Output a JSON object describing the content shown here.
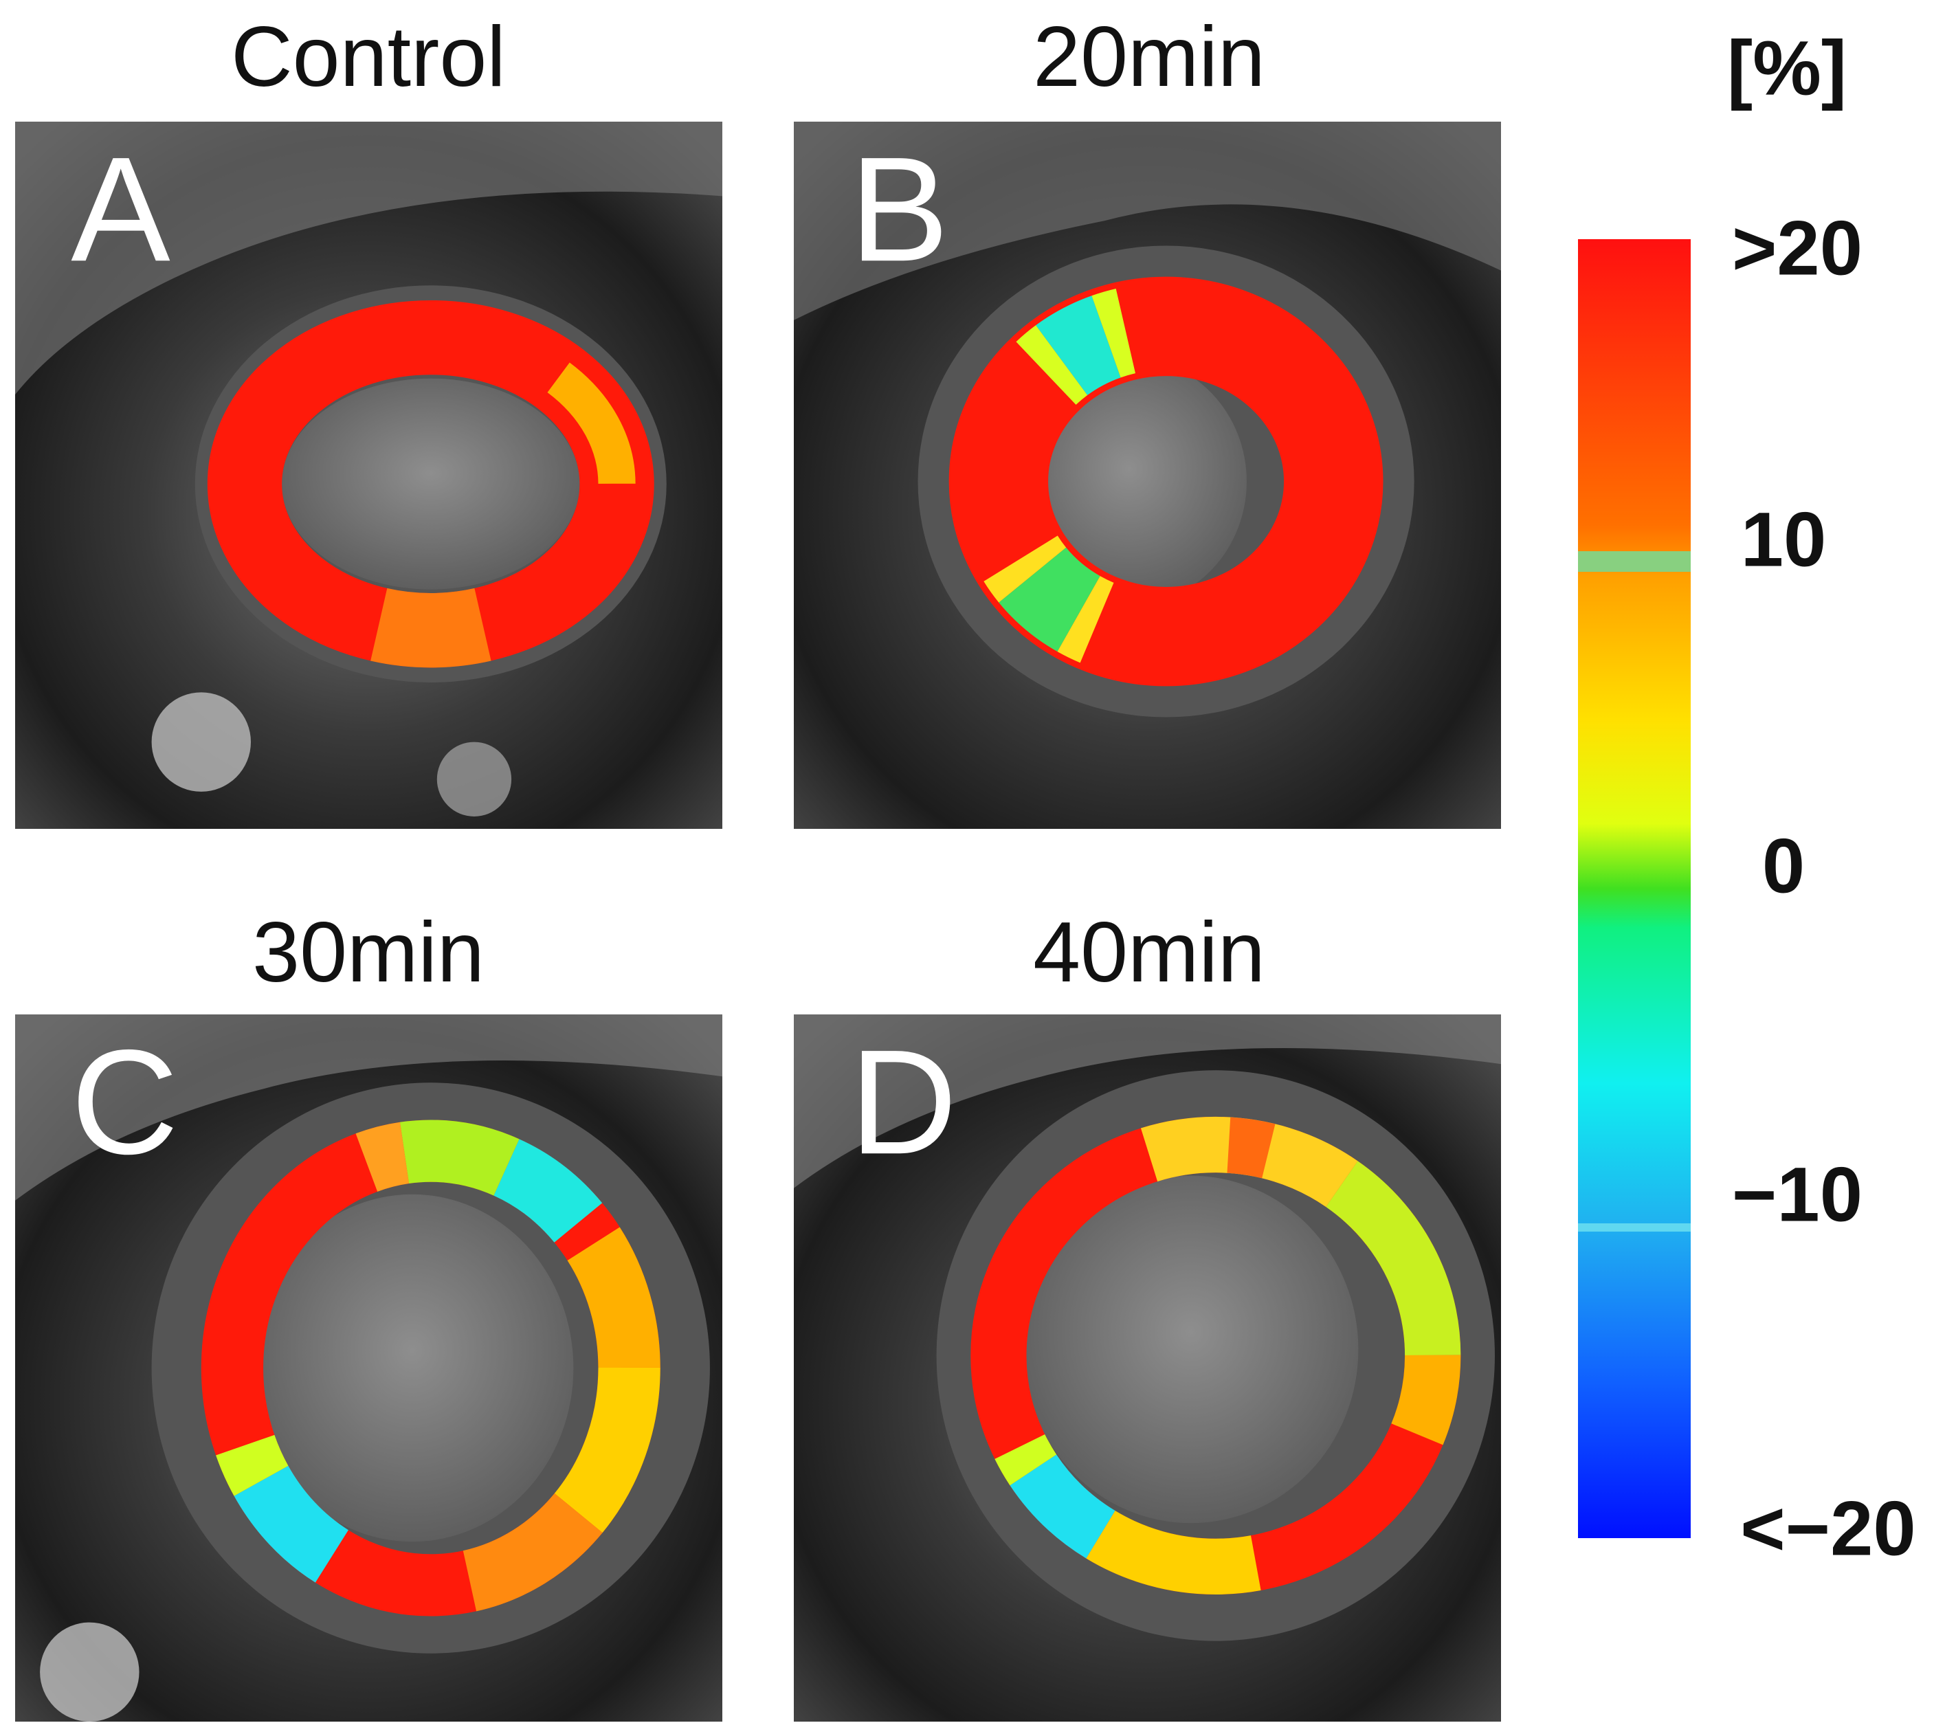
{
  "panels": [
    {
      "title": "Control",
      "letter": "A"
    },
    {
      "title": "20min",
      "letter": "B"
    },
    {
      "title": "30min",
      "letter": "C"
    },
    {
      "title": "40min",
      "letter": "D"
    }
  ],
  "colorbar": {
    "unit": "[%]",
    "labels": [
      ">20",
      "10",
      "0",
      "−10",
      "<−20"
    ]
  }
}
